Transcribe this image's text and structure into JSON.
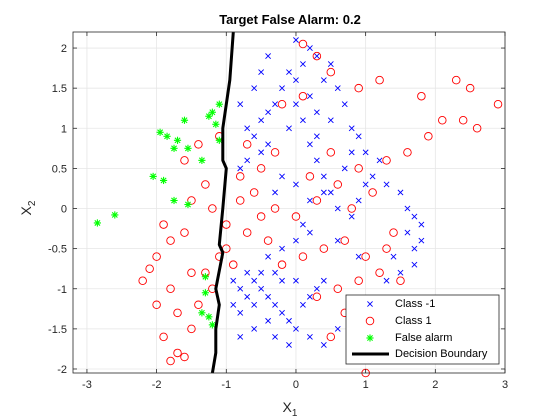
{
  "chart_data": {
    "type": "scatter",
    "title": "Target False Alarm: 0.2",
    "xlabel": {
      "base": "X",
      "sub": "1"
    },
    "ylabel": {
      "base": "X",
      "sub": "2"
    },
    "xlim": [
      -3.2,
      3
    ],
    "ylim": [
      -2.05,
      2.2
    ],
    "xticks": [
      -3,
      -2,
      -1,
      0,
      1,
      2,
      3
    ],
    "xtick_labels": [
      "-3",
      "-2",
      "-1",
      "0",
      "1",
      "2",
      "3"
    ],
    "yticks": [
      -2,
      -1.5,
      -1,
      -0.5,
      0,
      0.5,
      1,
      1.5,
      2
    ],
    "ytick_labels": [
      "-2",
      "-1.5",
      "-1",
      "-0.5",
      "0",
      "0.5",
      "1",
      "1.5",
      "2"
    ],
    "grid": true,
    "legend_position": "bottom-right",
    "colors": {
      "class_neg": "#0000ff",
      "class_pos": "#ff0000",
      "false_alarm": "#00ff00",
      "boundary": "#000000",
      "axes": "#262626",
      "grid": "#e6e6e6"
    },
    "series": [
      {
        "name": "Class -1",
        "marker": "x",
        "points": [
          [
            -0.7,
            1.0
          ],
          [
            -0.5,
            1.1
          ],
          [
            -0.4,
            1.2
          ],
          [
            -0.6,
            0.9
          ],
          [
            -0.3,
            1.3
          ],
          [
            -0.2,
            1.5
          ],
          [
            -0.1,
            1.7
          ],
          [
            0.0,
            1.6
          ],
          [
            0.1,
            1.8
          ],
          [
            0.2,
            2.0
          ],
          [
            0.3,
            1.9
          ],
          [
            0.0,
            2.1
          ],
          [
            -0.4,
            1.9
          ],
          [
            -0.5,
            1.7
          ],
          [
            -0.6,
            1.5
          ],
          [
            -0.8,
            1.3
          ],
          [
            -0.7,
            0.6
          ],
          [
            -0.8,
            0.5
          ],
          [
            -0.5,
            0.7
          ],
          [
            -0.4,
            0.8
          ],
          [
            0.0,
            1.3
          ],
          [
            0.2,
            1.4
          ],
          [
            0.3,
            1.2
          ],
          [
            0.5,
            1.1
          ],
          [
            0.6,
            1.5
          ],
          [
            0.7,
            1.3
          ],
          [
            0.5,
            1.8
          ],
          [
            0.4,
            1.6
          ],
          [
            0.8,
            1.0
          ],
          [
            0.9,
            0.9
          ],
          [
            1.0,
            0.7
          ],
          [
            1.2,
            0.6
          ],
          [
            1.1,
            0.4
          ],
          [
            1.3,
            0.3
          ],
          [
            1.5,
            0.2
          ],
          [
            1.6,
            0.0
          ],
          [
            1.7,
            -0.1
          ],
          [
            1.8,
            -0.2
          ],
          [
            1.6,
            -0.3
          ],
          [
            1.7,
            -0.5
          ],
          [
            1.8,
            -0.4
          ],
          [
            1.7,
            -0.7
          ],
          [
            1.4,
            -0.6
          ],
          [
            1.5,
            -0.8
          ],
          [
            1.3,
            -0.9
          ],
          [
            0.2,
            0.8
          ],
          [
            0.3,
            0.6
          ],
          [
            0.4,
            0.4
          ],
          [
            0.5,
            0.2
          ],
          [
            0.6,
            0.0
          ],
          [
            0.8,
            -0.1
          ],
          [
            0.9,
            0.1
          ],
          [
            1.0,
            0.3
          ],
          [
            0.7,
            0.5
          ],
          [
            0.8,
            0.7
          ],
          [
            0.1,
            -0.2
          ],
          [
            0.2,
            -0.3
          ],
          [
            0.0,
            -0.4
          ],
          [
            -0.2,
            -0.5
          ],
          [
            -0.4,
            -0.6
          ],
          [
            -0.5,
            -0.8
          ],
          [
            -0.6,
            -0.9
          ],
          [
            -0.8,
            -1.0
          ],
          [
            -0.7,
            -1.1
          ],
          [
            -0.9,
            -1.2
          ],
          [
            -0.8,
            -1.3
          ],
          [
            -0.6,
            -1.2
          ],
          [
            -0.5,
            -1.0
          ],
          [
            -0.4,
            -1.1
          ],
          [
            -0.3,
            -1.2
          ],
          [
            -0.2,
            -1.3
          ],
          [
            -0.1,
            -1.4
          ],
          [
            0.0,
            -1.5
          ],
          [
            0.1,
            -1.2
          ],
          [
            0.2,
            -1.1
          ],
          [
            0.3,
            -1.0
          ],
          [
            0.4,
            -0.9
          ],
          [
            0.0,
            -0.9
          ],
          [
            -0.2,
            -0.9
          ],
          [
            -0.3,
            -0.8
          ],
          [
            -0.4,
            -1.4
          ],
          [
            -0.6,
            -1.5
          ],
          [
            -0.8,
            -1.6
          ],
          [
            -0.3,
            -1.6
          ],
          [
            -0.1,
            -1.7
          ],
          [
            0.2,
            -1.6
          ],
          [
            0.4,
            -1.7
          ],
          [
            0.6,
            -1.5
          ],
          [
            -0.9,
            -0.9
          ],
          [
            -0.7,
            -0.8
          ],
          [
            -0.1,
            1.0
          ],
          [
            0.1,
            1.1
          ],
          [
            0.3,
            0.9
          ],
          [
            0.4,
            0.2
          ],
          [
            0.2,
            0.1
          ],
          [
            0.0,
            0.3
          ],
          [
            -0.2,
            0.4
          ],
          [
            -0.3,
            0.2
          ],
          [
            0.6,
            -0.4
          ],
          [
            0.9,
            -0.6
          ]
        ]
      },
      {
        "name": "Class 1",
        "marker": "o",
        "points": [
          [
            0.1,
            2.05
          ],
          [
            0.3,
            1.9
          ],
          [
            0.5,
            1.7
          ],
          [
            0.9,
            1.5
          ],
          [
            1.2,
            1.6
          ],
          [
            1.8,
            1.4
          ],
          [
            2.3,
            1.6
          ],
          [
            2.5,
            1.5
          ],
          [
            2.9,
            1.3
          ],
          [
            2.1,
            1.1
          ],
          [
            2.4,
            1.1
          ],
          [
            2.6,
            1.0
          ],
          [
            1.9,
            0.9
          ],
          [
            1.6,
            0.7
          ],
          [
            1.3,
            0.6
          ],
          [
            0.9,
            0.5
          ],
          [
            0.6,
            0.3
          ],
          [
            0.3,
            0.1
          ],
          [
            0.0,
            -0.1
          ],
          [
            -0.3,
            0.0
          ],
          [
            -0.6,
            0.2
          ],
          [
            -0.8,
            0.4
          ],
          [
            -0.5,
            0.5
          ],
          [
            -0.3,
            0.7
          ],
          [
            -0.7,
            0.8
          ],
          [
            -1.1,
            0.9
          ],
          [
            -1.4,
            0.8
          ],
          [
            -1.6,
            0.6
          ],
          [
            -1.3,
            0.3
          ],
          [
            -1.5,
            0.1
          ],
          [
            -1.2,
            0.0
          ],
          [
            -1.0,
            -0.2
          ],
          [
            -0.7,
            -0.3
          ],
          [
            -0.4,
            -0.4
          ],
          [
            -0.2,
            -0.7
          ],
          [
            0.1,
            -0.6
          ],
          [
            0.4,
            -0.5
          ],
          [
            0.7,
            -0.4
          ],
          [
            1.0,
            -0.6
          ],
          [
            1.3,
            -0.5
          ],
          [
            1.4,
            -0.3
          ],
          [
            1.2,
            -0.8
          ],
          [
            0.9,
            -0.9
          ],
          [
            0.6,
            -1.0
          ],
          [
            0.3,
            -1.1
          ],
          [
            -2.2,
            -0.9
          ],
          [
            -2.0,
            -0.6
          ],
          [
            -1.8,
            -0.4
          ],
          [
            -1.6,
            -0.3
          ],
          [
            -1.9,
            -0.2
          ],
          [
            -2.0,
            -1.2
          ],
          [
            -1.8,
            -1.0
          ],
          [
            -1.7,
            -1.3
          ],
          [
            -1.5,
            -1.5
          ],
          [
            -1.9,
            -1.6
          ],
          [
            -1.7,
            -1.8
          ],
          [
            -1.8,
            -1.9
          ],
          [
            -1.6,
            -1.85
          ],
          [
            -1.3,
            -0.8
          ],
          [
            -1.1,
            -0.6
          ],
          [
            -0.9,
            -0.7
          ],
          [
            -1.0,
            -0.5
          ],
          [
            -1.2,
            -1.0
          ],
          [
            -1.4,
            -1.2
          ],
          [
            -0.8,
            0.1
          ],
          [
            -0.5,
            -0.1
          ],
          [
            0.2,
            0.4
          ],
          [
            0.5,
            0.7
          ],
          [
            0.8,
            0.0
          ],
          [
            1.1,
            0.2
          ],
          [
            0.1,
            1.4
          ],
          [
            -0.2,
            1.3
          ],
          [
            1.5,
            -0.9
          ],
          [
            1.0,
            -1.2
          ],
          [
            0.7,
            -1.3
          ],
          [
            1.1,
            -1.5
          ],
          [
            0.5,
            -1.6
          ],
          [
            1.0,
            -2.05
          ],
          [
            -2.1,
            -0.75
          ],
          [
            -1.5,
            -0.8
          ]
        ]
      },
      {
        "name": "False alarm",
        "marker": "*",
        "points": [
          [
            -2.85,
            -0.18
          ],
          [
            -2.6,
            -0.08
          ],
          [
            -1.95,
            0.95
          ],
          [
            -1.85,
            0.9
          ],
          [
            -1.7,
            0.85
          ],
          [
            -1.75,
            0.75
          ],
          [
            -1.55,
            0.75
          ],
          [
            -1.6,
            1.1
          ],
          [
            -1.35,
            0.6
          ],
          [
            -1.2,
            1.2
          ],
          [
            -1.15,
            1.05
          ],
          [
            -1.1,
            1.3
          ],
          [
            -1.25,
            1.15
          ],
          [
            -1.1,
            0.85
          ],
          [
            -1.75,
            0.1
          ],
          [
            -1.9,
            0.35
          ],
          [
            -2.05,
            0.4
          ],
          [
            -1.55,
            0.05
          ],
          [
            -1.3,
            -0.85
          ],
          [
            -1.3,
            -1.05
          ],
          [
            -1.25,
            -1.35
          ],
          [
            -1.2,
            -1.45
          ],
          [
            -1.35,
            -1.3
          ]
        ]
      }
    ],
    "boundary": {
      "name": "Decision Boundary",
      "points": [
        [
          -0.9,
          2.2
        ],
        [
          -0.95,
          1.6
        ],
        [
          -1.05,
          1.0
        ],
        [
          -1.05,
          0.6
        ],
        [
          -1.0,
          0.5
        ],
        [
          -1.05,
          0.0
        ],
        [
          -1.1,
          -0.45
        ],
        [
          -1.05,
          -0.55
        ],
        [
          -1.15,
          -1.0
        ],
        [
          -1.1,
          -1.2
        ],
        [
          -1.15,
          -1.5
        ],
        [
          -1.15,
          -1.8
        ],
        [
          -1.2,
          -2.05
        ]
      ]
    }
  }
}
